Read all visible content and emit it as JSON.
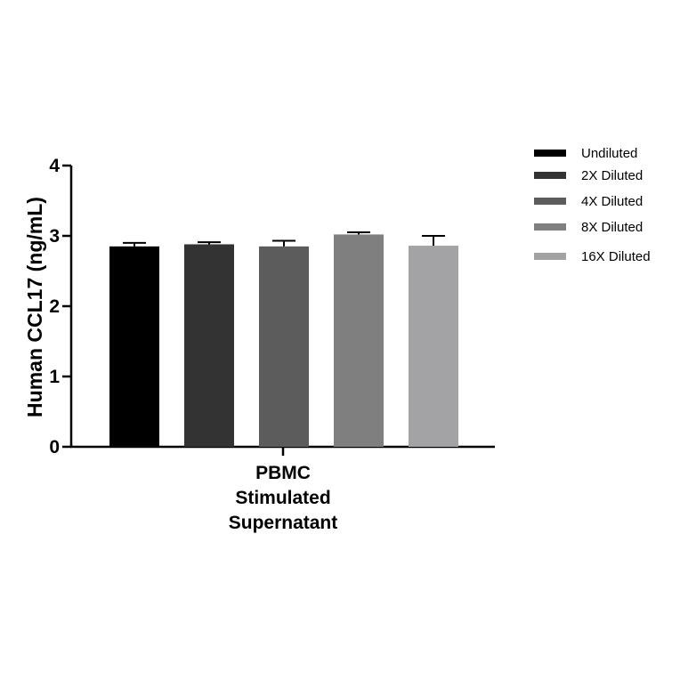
{
  "chart_data": {
    "type": "bar",
    "title": "",
    "ylabel": "Human CCL17 (ng/mL)",
    "xlabel": "",
    "category_lines": [
      "PBMC",
      "Stimulated",
      "Supernatant"
    ],
    "ylim": [
      0,
      4
    ],
    "yticks": [
      "0",
      "1",
      "2",
      "3",
      "4"
    ],
    "series": [
      {
        "name": "Undiluted",
        "value": 2.85,
        "error": 0.05,
        "color": "#000000"
      },
      {
        "name": "2X Diluted",
        "value": 2.88,
        "error": 0.03,
        "color": "#333333"
      },
      {
        "name": "4X Diluted",
        "value": 2.85,
        "error": 0.08,
        "color": "#5c5c5c"
      },
      {
        "name": "8X Diluted",
        "value": 3.02,
        "error": 0.03,
        "color": "#7f7f7f"
      },
      {
        "name": "16X Diluted",
        "value": 2.86,
        "error": 0.14,
        "color": "#a3a3a6"
      }
    ],
    "legend_position": "right"
  }
}
